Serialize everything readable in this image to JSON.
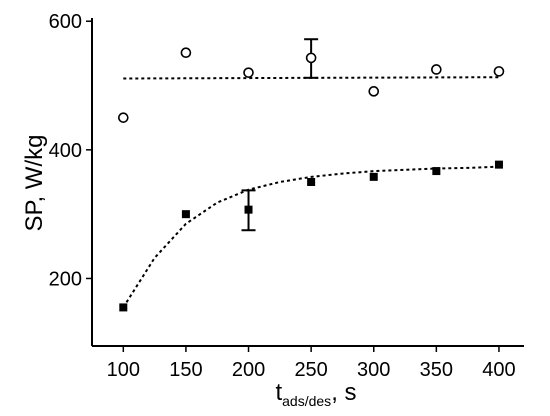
{
  "chart_data": {
    "type": "scatter",
    "xlabel": {
      "main": "t",
      "sub": "ads/des",
      "suffix": ", s"
    },
    "ylabel": "SP, W/kg",
    "xlim": [
      75,
      420
    ],
    "ylim": [
      95,
      605
    ],
    "xticks": [
      100,
      150,
      200,
      250,
      300,
      350,
      400
    ],
    "yticks": [
      200,
      400,
      600
    ],
    "grid": false,
    "series": [
      {
        "marker": "open-circle",
        "x": [
          100,
          150,
          200,
          250,
          300,
          350,
          400
        ],
        "y": [
          450,
          551,
          520,
          543,
          491,
          525,
          522
        ],
        "error_bars": [
          {
            "x": 250,
            "low": 512,
            "high": 572
          }
        ]
      },
      {
        "marker": "filled-square",
        "x": [
          100,
          150,
          200,
          250,
          300,
          350,
          400
        ],
        "y": [
          155,
          300,
          307,
          350,
          358,
          367,
          377
        ],
        "error_bars": [
          {
            "x": 200,
            "low": 275,
            "high": 337
          }
        ]
      }
    ],
    "fits": [
      {
        "style": "dotted",
        "x": [
          100,
          400
        ],
        "y": [
          511,
          513
        ]
      },
      {
        "style": "dotted",
        "x": [
          100,
          125,
          150,
          175,
          200,
          225,
          250,
          275,
          300,
          325,
          350,
          375,
          400
        ],
        "y": [
          155,
          232,
          285,
          318,
          338,
          350,
          358,
          363,
          367,
          369,
          371,
          372,
          374
        ]
      }
    ],
    "colors": {
      "axis": "#000000",
      "marker": "#000000"
    }
  }
}
